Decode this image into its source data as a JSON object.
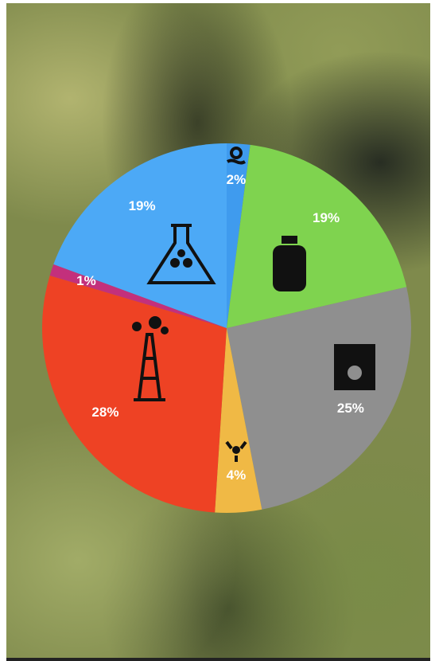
{
  "chart_data": {
    "type": "pie",
    "values": [
      2,
      19,
      25,
      4,
      28,
      1,
      19
    ],
    "value_labels": [
      "2%",
      "19%",
      "25%",
      "4%",
      "28%",
      "1%",
      "19%"
    ],
    "colors": [
      "#3f9bee",
      "#7fd34f",
      "#8f8f8f",
      "#f0b945",
      "#ee4224",
      "#c3307c",
      "#4ca9f6"
    ]
  }
}
